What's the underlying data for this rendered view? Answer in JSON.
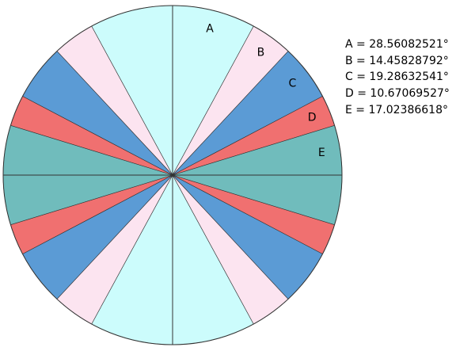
{
  "diagram": {
    "type": "symmetric-sector-circle",
    "sectors": [
      {
        "label": "A",
        "angle_deg": 28.56082521,
        "color": "#ccfcfc"
      },
      {
        "label": "B",
        "angle_deg": 14.45828792,
        "color": "#fce4f0"
      },
      {
        "label": "C",
        "angle_deg": 19.28632541,
        "color": "#5b9bd5"
      },
      {
        "label": "D",
        "angle_deg": 10.67069527,
        "color": "#f07070"
      },
      {
        "label": "E",
        "angle_deg": 17.02386618,
        "color": "#70bcbc"
      }
    ],
    "legend": [
      "A = 28.56082521°",
      "B = 14.45828792°",
      "C = 19.28632541°",
      "D = 10.67069527°",
      "E = 17.02386618°"
    ],
    "line_color": "#333333"
  }
}
